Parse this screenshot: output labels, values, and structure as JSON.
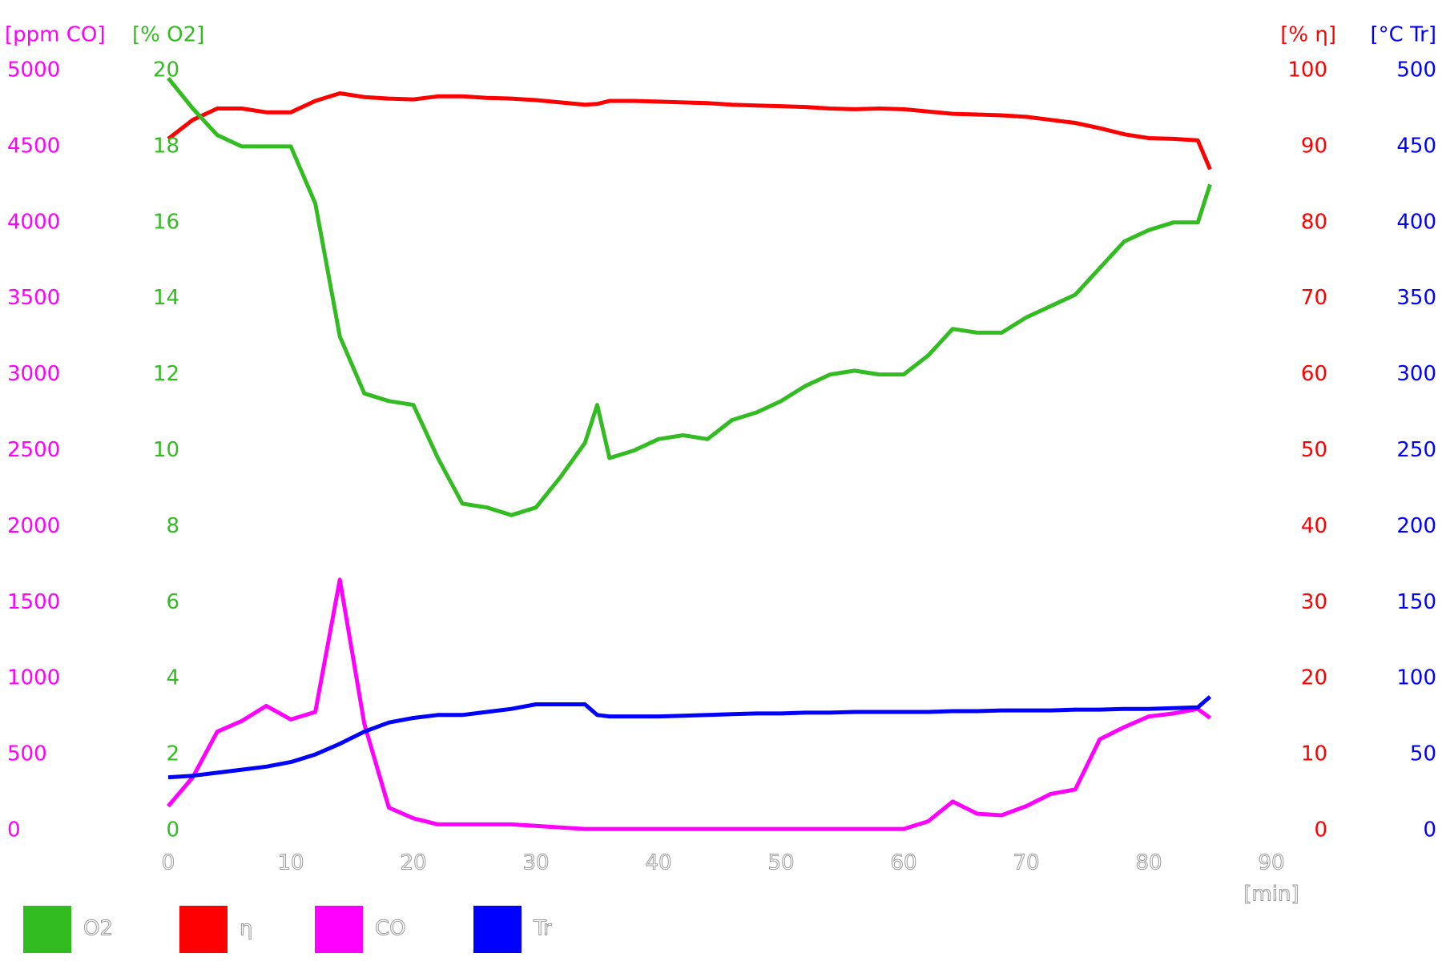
{
  "chart_data": {
    "type": "line",
    "xlabel": "[min]",
    "xlim": [
      0,
      90
    ],
    "xticks": [
      0,
      10,
      20,
      30,
      40,
      50,
      60,
      70,
      80,
      90
    ],
    "x": [
      0,
      2,
      4,
      6,
      8,
      10,
      12,
      14,
      16,
      18,
      20,
      22,
      24,
      26,
      28,
      30,
      32,
      34,
      35,
      36,
      38,
      40,
      42,
      44,
      46,
      48,
      50,
      52,
      54,
      56,
      58,
      60,
      62,
      64,
      66,
      68,
      70,
      72,
      74,
      76,
      78,
      80,
      82,
      84,
      85
    ],
    "series": [
      {
        "name": "O2",
        "color": "#33bb22",
        "axis": {
          "label": "[% O2]",
          "ylim": [
            0,
            20
          ],
          "yticks": [
            0,
            2,
            4,
            6,
            8,
            10,
            12,
            14,
            16,
            18,
            20
          ]
        },
        "values": [
          19.8,
          19.0,
          18.3,
          18.0,
          18.0,
          18.0,
          16.5,
          13.0,
          11.5,
          11.3,
          11.2,
          9.8,
          8.6,
          8.5,
          8.3,
          8.5,
          9.3,
          10.2,
          11.2,
          9.8,
          10.0,
          10.3,
          10.4,
          10.3,
          10.8,
          11.0,
          11.3,
          11.7,
          12.0,
          12.1,
          12.0,
          12.0,
          12.5,
          13.2,
          13.1,
          13.1,
          13.5,
          13.8,
          14.1,
          14.8,
          15.5,
          15.8,
          16.0,
          16.0,
          17.0
        ]
      },
      {
        "name": "η",
        "color": "#ff0000",
        "axis": {
          "label": "[% η]",
          "ylim": [
            0,
            100
          ],
          "yticks": [
            0,
            10,
            20,
            30,
            40,
            50,
            60,
            70,
            80,
            90,
            100
          ]
        },
        "values": [
          91,
          93.5,
          95,
          95,
          94.5,
          94.5,
          96,
          97,
          96.5,
          96.3,
          96.2,
          96.6,
          96.6,
          96.4,
          96.3,
          96.1,
          95.8,
          95.5,
          95.6,
          96,
          96,
          95.9,
          95.8,
          95.7,
          95.5,
          95.4,
          95.3,
          95.2,
          95,
          94.9,
          95,
          94.9,
          94.6,
          94.3,
          94.2,
          94.1,
          93.9,
          93.5,
          93.1,
          92.4,
          91.6,
          91.1,
          91.0,
          90.8,
          87
        ]
      },
      {
        "name": "CO",
        "color": "#ff00ff",
        "axis": {
          "label": "[ppm CO]",
          "ylim": [
            0,
            5000
          ],
          "yticks": [
            0,
            500,
            1000,
            1500,
            2000,
            2500,
            3000,
            3500,
            4000,
            4500,
            5000
          ]
        },
        "values": [
          160,
          350,
          650,
          720,
          820,
          730,
          780,
          1650,
          700,
          150,
          80,
          40,
          40,
          40,
          40,
          30,
          20,
          10,
          10,
          10,
          10,
          10,
          10,
          10,
          10,
          10,
          10,
          10,
          10,
          10,
          10,
          10,
          60,
          190,
          110,
          100,
          160,
          240,
          270,
          600,
          680,
          750,
          770,
          800,
          740
        ]
      },
      {
        "name": "Tr",
        "color": "#0000ff",
        "axis": {
          "label": "[°C Tr]",
          "ylim": [
            0,
            500
          ],
          "yticks": [
            0,
            50,
            100,
            150,
            200,
            250,
            300,
            350,
            400,
            450,
            500
          ]
        },
        "values": [
          35,
          36,
          38,
          40,
          42,
          45,
          50,
          57,
          65,
          71,
          74,
          76,
          76,
          78,
          80,
          83,
          83,
          83,
          76,
          75,
          75,
          75,
          75.5,
          76,
          76.5,
          77,
          77,
          77.5,
          77.5,
          78,
          78,
          78,
          78,
          78.5,
          78.5,
          79,
          79,
          79,
          79.5,
          79.5,
          80,
          80,
          80.5,
          81,
          88
        ]
      }
    ]
  }
}
